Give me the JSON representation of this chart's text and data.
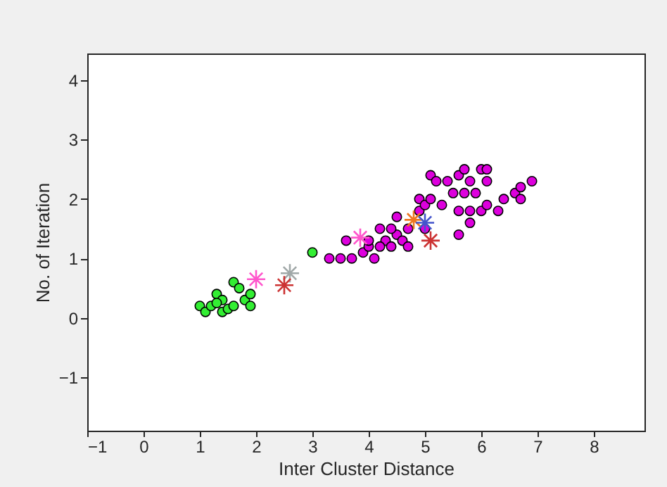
{
  "chart_data": {
    "type": "scatter",
    "xlabel": "Inter Cluster Distance",
    "ylabel": "No. of Iteration",
    "xlim": [
      -1,
      8.9
    ],
    "ylim": [
      -1.9,
      4.45
    ],
    "xticks": [
      -1,
      0,
      1,
      2,
      3,
      4,
      5,
      6,
      7,
      8
    ],
    "yticks": [
      -1,
      0,
      1,
      2,
      3,
      4
    ],
    "grid": false,
    "series": [
      {
        "color": "#33ee33",
        "marker": "circle",
        "x": [
          1.0,
          1.1,
          1.3,
          1.2,
          1.4,
          1.5,
          1.6,
          1.7,
          1.5,
          1.4,
          1.8,
          1.9,
          1.9,
          1.6,
          1.3,
          3.0
        ],
        "values": [
          0.2,
          0.1,
          0.4,
          0.2,
          0.1,
          null,
          0.6,
          0.5,
          0.15,
          0.3,
          0.3,
          0.4,
          0.2,
          0.2,
          0.25,
          1.1
        ]
      },
      {
        "color": "#dd00dd",
        "marker": "circle",
        "x": [
          3.3,
          3.5,
          3.7,
          3.6,
          3.9,
          4.0,
          4.1,
          4.0,
          4.2,
          4.3,
          4.4,
          4.5,
          4.5,
          4.6,
          4.7,
          4.7,
          4.8,
          4.9,
          4.9,
          5.0,
          5.0,
          5.1,
          5.1,
          5.2,
          5.3,
          5.4,
          5.5,
          5.6,
          5.6,
          5.6,
          5.7,
          5.7,
          5.8,
          5.8,
          5.8,
          5.9,
          6.0,
          6.0,
          6.1,
          6.1,
          6.1,
          6.3,
          6.4,
          6.6,
          6.7,
          6.7,
          6.9,
          4.2,
          4.4
        ],
        "values": [
          1.0,
          1.0,
          1.0,
          1.3,
          1.1,
          1.2,
          1.0,
          1.3,
          1.5,
          1.3,
          1.2,
          1.4,
          1.7,
          1.3,
          1.2,
          1.5,
          null,
          1.8,
          2.0,
          1.5,
          1.9,
          2.0,
          2.4,
          2.3,
          1.9,
          2.3,
          2.1,
          1.8,
          2.4,
          1.4,
          2.5,
          2.1,
          2.3,
          1.8,
          1.6,
          2.1,
          2.5,
          1.8,
          2.5,
          2.3,
          1.9,
          1.8,
          2.0,
          2.1,
          2.2,
          2.0,
          2.3,
          1.2,
          1.5
        ]
      },
      {
        "color": "#ff55cc",
        "marker": "cross",
        "x": [
          2.0,
          3.85
        ],
        "values": [
          0.65,
          1.35
        ]
      },
      {
        "color": "#a0a8a8",
        "marker": "cross",
        "x": [
          2.6
        ],
        "values": [
          0.75
        ]
      },
      {
        "color": "#cc3333",
        "marker": "cross",
        "x": [
          2.5,
          5.1
        ],
        "values": [
          0.55,
          1.3
        ]
      },
      {
        "color": "#ee7722",
        "marker": "cross",
        "x": [
          4.8
        ],
        "values": [
          1.65
        ]
      },
      {
        "color": "#4455cc",
        "marker": "cross",
        "x": [
          5.0
        ],
        "values": [
          1.6
        ]
      }
    ]
  }
}
